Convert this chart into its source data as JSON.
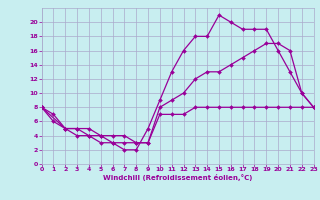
{
  "xlabel": "Windchill (Refroidissement éolien,°C)",
  "bg_color": "#c8eef0",
  "grid_color": "#aaaacc",
  "line_color": "#990099",
  "xlim": [
    0,
    23
  ],
  "ylim": [
    0,
    22
  ],
  "xticks": [
    0,
    1,
    2,
    3,
    4,
    5,
    6,
    7,
    8,
    9,
    10,
    11,
    12,
    13,
    14,
    15,
    16,
    17,
    18,
    19,
    20,
    21,
    22,
    23
  ],
  "yticks": [
    0,
    2,
    4,
    6,
    8,
    10,
    12,
    14,
    16,
    18,
    20
  ],
  "line1_x": [
    0,
    1,
    2,
    3,
    4,
    5,
    6,
    7,
    8,
    9,
    10,
    11,
    12,
    13,
    14,
    15,
    16,
    17,
    18,
    19,
    20,
    21,
    22,
    23
  ],
  "line1_y": [
    8,
    7,
    5,
    5,
    4,
    3,
    3,
    2,
    2,
    5,
    9,
    13,
    16,
    18,
    18,
    21,
    20,
    19,
    19,
    19,
    16,
    13,
    10,
    8
  ],
  "line2_x": [
    0,
    1,
    2,
    3,
    4,
    5,
    6,
    7,
    8,
    9,
    10,
    11,
    12,
    13,
    14,
    15,
    16,
    17,
    18,
    19,
    20,
    21,
    22,
    23
  ],
  "line2_y": [
    8,
    6,
    5,
    5,
    5,
    4,
    3,
    3,
    3,
    3,
    8,
    9,
    10,
    12,
    13,
    13,
    14,
    15,
    16,
    17,
    17,
    16,
    10,
    8
  ],
  "line3_x": [
    0,
    2,
    3,
    4,
    5,
    6,
    7,
    8,
    9,
    10,
    11,
    12,
    13,
    14,
    15,
    16,
    17,
    18,
    19,
    20,
    21,
    22,
    23
  ],
  "line3_y": [
    8,
    5,
    4,
    4,
    4,
    4,
    4,
    3,
    3,
    7,
    7,
    7,
    8,
    8,
    8,
    8,
    8,
    8,
    8,
    8,
    8,
    8,
    8
  ]
}
